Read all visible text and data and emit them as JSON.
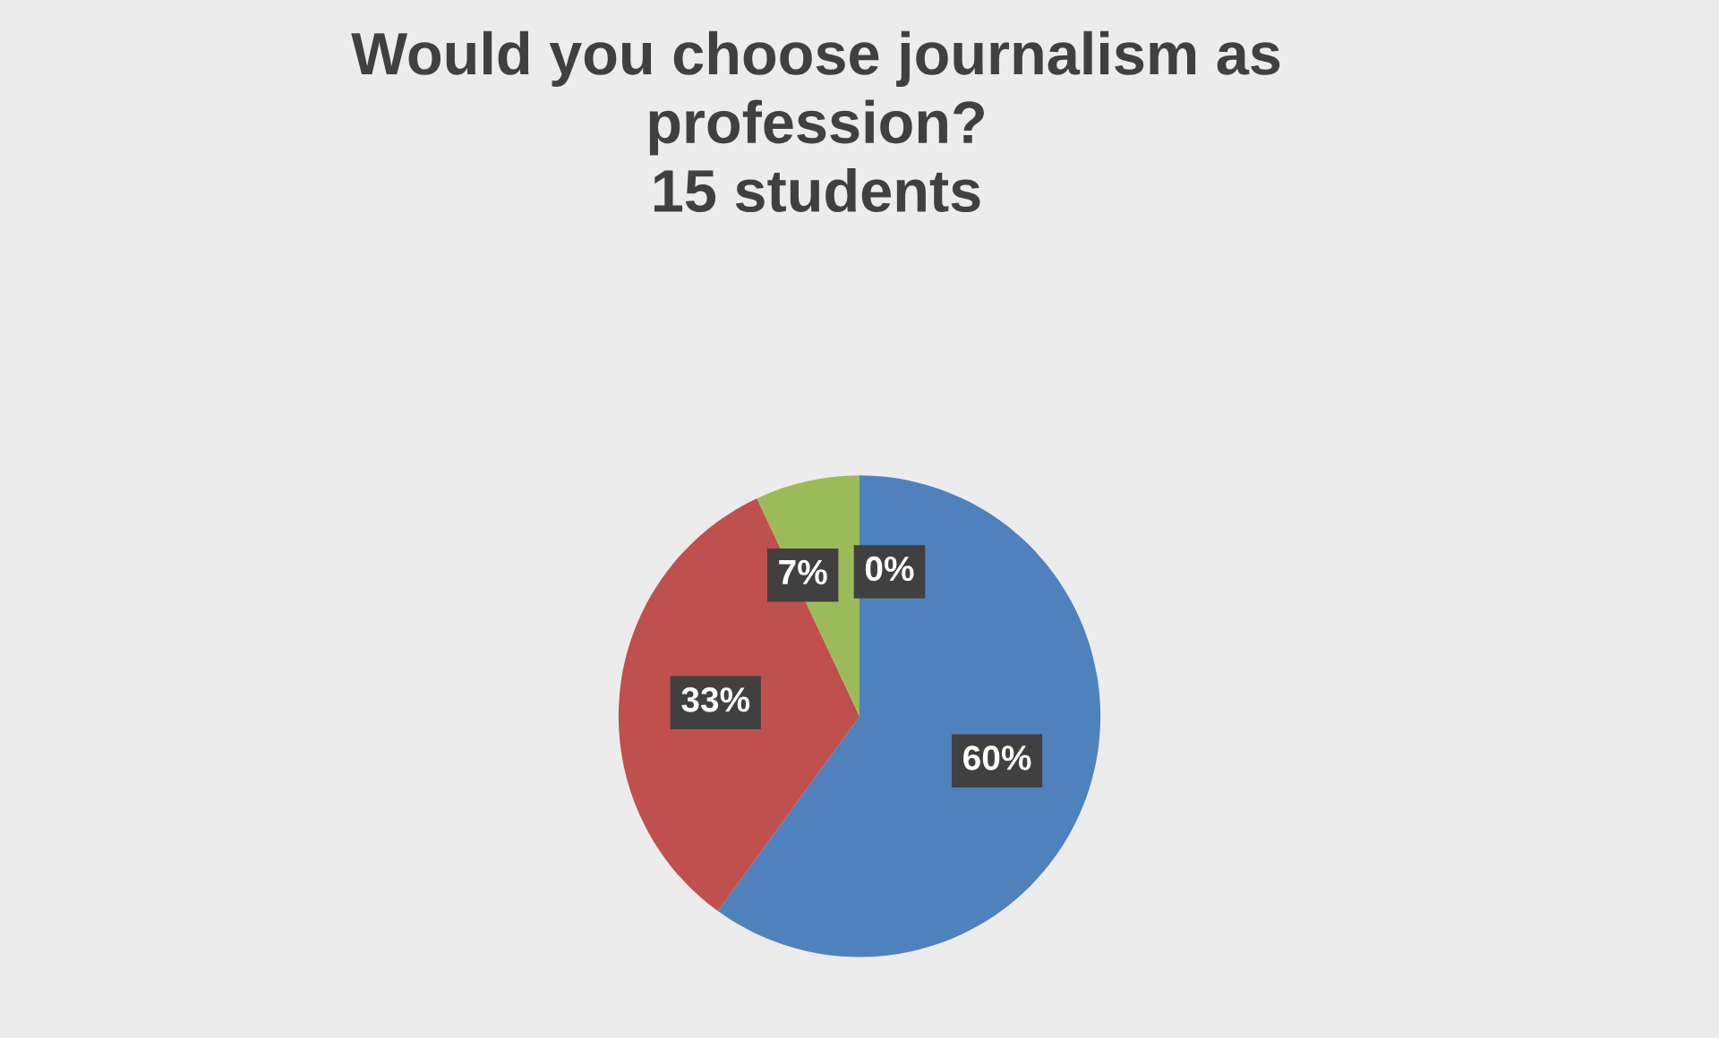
{
  "chart_data": {
    "type": "pie",
    "title": "Would you choose journalism as\nprofession?\n15 students",
    "categories": [
      null,
      null,
      null,
      null
    ],
    "values": [
      60,
      33,
      7,
      0
    ],
    "value_labels": [
      "60%",
      "33%",
      "7%",
      "0%"
    ],
    "colors": [
      "#4f81bd",
      "#c0504d",
      "#9bbb59",
      "#8064a2"
    ]
  }
}
